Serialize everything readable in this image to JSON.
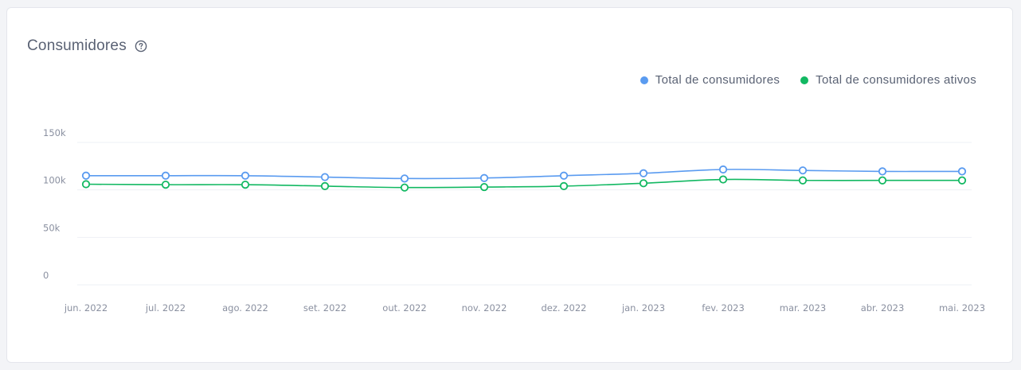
{
  "card": {
    "title": "Consumidores"
  },
  "icons": {
    "help": "help-circle-icon"
  },
  "colors": {
    "series_total": "#5a9bf0",
    "series_active": "#12b862",
    "grid": "#eef0f4",
    "text": "#5a6274"
  },
  "chart_data": {
    "type": "line",
    "title": "Consumidores",
    "xlabel": "",
    "ylabel": "",
    "categories": [
      "jun. 2022",
      "jul. 2022",
      "ago. 2022",
      "set. 2022",
      "out. 2022",
      "nov. 2022",
      "dez. 2022",
      "jan. 2023",
      "fev. 2023",
      "mar. 2023",
      "abr. 2023",
      "mai. 2023"
    ],
    "y_ticks": [
      {
        "value": 150000,
        "label": "150k"
      },
      {
        "value": 100000,
        "label": "100k"
      },
      {
        "value": 50000,
        "label": "50k"
      },
      {
        "value": 0,
        "label": "0"
      }
    ],
    "ylim": [
      0,
      150000
    ],
    "grid": true,
    "legend_position": "top-right",
    "series": [
      {
        "name": "Total de consumidores",
        "color": "#5a9bf0",
        "values": [
          115000,
          115000,
          115000,
          113500,
          112000,
          112500,
          115000,
          117500,
          121500,
          120500,
          119500,
          119500
        ]
      },
      {
        "name": "Total de consumidores ativos",
        "color": "#12b862",
        "values": [
          106000,
          105500,
          105500,
          104000,
          102500,
          103000,
          104000,
          107000,
          111000,
          110000,
          110000,
          110000
        ]
      }
    ]
  }
}
